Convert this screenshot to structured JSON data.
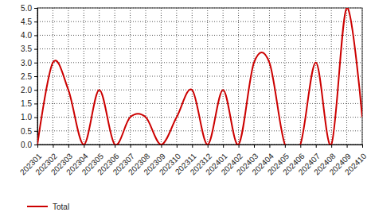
{
  "chart_data": {
    "type": "line",
    "categories": [
      "202301",
      "202302",
      "202303",
      "202304",
      "202305",
      "202306",
      "202307",
      "202308",
      "202309",
      "202310",
      "202311",
      "202312",
      "202401",
      "202402",
      "202403",
      "202404",
      "202405",
      "202406",
      "202407",
      "202408",
      "202409",
      "202410"
    ],
    "series": [
      {
        "name": "Total",
        "color": "#cc0000",
        "values": [
          0,
          3,
          2,
          0,
          2,
          0,
          1,
          1,
          0,
          1,
          2,
          0,
          2,
          0,
          3,
          3,
          0,
          0,
          3,
          0,
          5,
          1
        ]
      }
    ],
    "ylim": [
      0,
      5
    ],
    "yticks": [
      {
        "value": 0,
        "label": "0.0"
      },
      0.5,
      {
        "value": 1,
        "label": "1.0"
      },
      1.5,
      {
        "value": 2,
        "label": "2.0"
      },
      2.5,
      {
        "value": 3,
        "label": "3.0"
      },
      3.5,
      {
        "value": 4,
        "label": "4.0"
      },
      4.5,
      {
        "value": 5,
        "label": "5.0"
      }
    ],
    "grid": true,
    "legend": "bottom left"
  }
}
